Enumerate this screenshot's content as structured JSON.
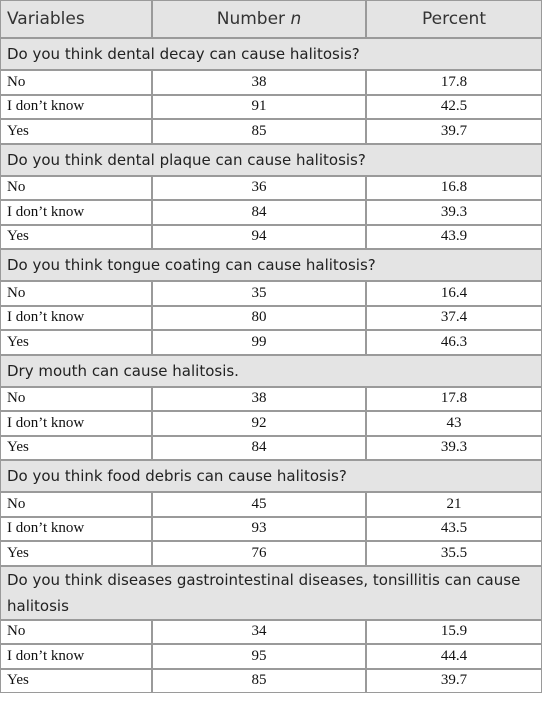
{
  "header": {
    "variables": "Variables",
    "number": "Number",
    "number_symbol": "n",
    "percent": "Percent"
  },
  "sections": [
    {
      "question": "Do you think dental decay can cause halitosis?",
      "rows": [
        {
          "label": "No",
          "number": 38,
          "percent": 17.8
        },
        {
          "label": "I don’t know",
          "number": 91,
          "percent": 42.5
        },
        {
          "label": "Yes",
          "number": 85,
          "percent": 39.7
        }
      ]
    },
    {
      "question": "Do you think dental plaque can cause halitosis?",
      "rows": [
        {
          "label": "No",
          "number": 36,
          "percent": 16.8
        },
        {
          "label": "I don’t know",
          "number": 84,
          "percent": 39.3
        },
        {
          "label": "Yes",
          "number": 94,
          "percent": 43.9
        }
      ]
    },
    {
      "question": "Do you think tongue coating can cause halitosis?",
      "rows": [
        {
          "label": "No",
          "number": 35,
          "percent": 16.4
        },
        {
          "label": "I don’t know",
          "number": 80,
          "percent": 37.4
        },
        {
          "label": "Yes",
          "number": 99,
          "percent": 46.3
        }
      ]
    },
    {
      "question": "Dry mouth can cause halitosis.",
      "rows": [
        {
          "label": "No",
          "number": 38,
          "percent": 17.8
        },
        {
          "label": "I don’t know",
          "number": 92,
          "percent": 43
        },
        {
          "label": "Yes",
          "number": 84,
          "percent": 39.3
        }
      ]
    },
    {
      "question": "Do you think food debris can cause halitosis?",
      "rows": [
        {
          "label": "No",
          "number": 45,
          "percent": 21
        },
        {
          "label": "I don’t know",
          "number": 93,
          "percent": 43.5
        },
        {
          "label": "Yes",
          "number": 76,
          "percent": 35.5
        }
      ]
    },
    {
      "question": "Do you think diseases gastrointestinal diseases, tonsillitis can cause halitosis",
      "rows": [
        {
          "label": "No",
          "number": 34,
          "percent": 15.9
        },
        {
          "label": "I don’t know",
          "number": 95,
          "percent": 44.4
        },
        {
          "label": "Yes",
          "number": 85,
          "percent": 39.7
        }
      ]
    }
  ]
}
